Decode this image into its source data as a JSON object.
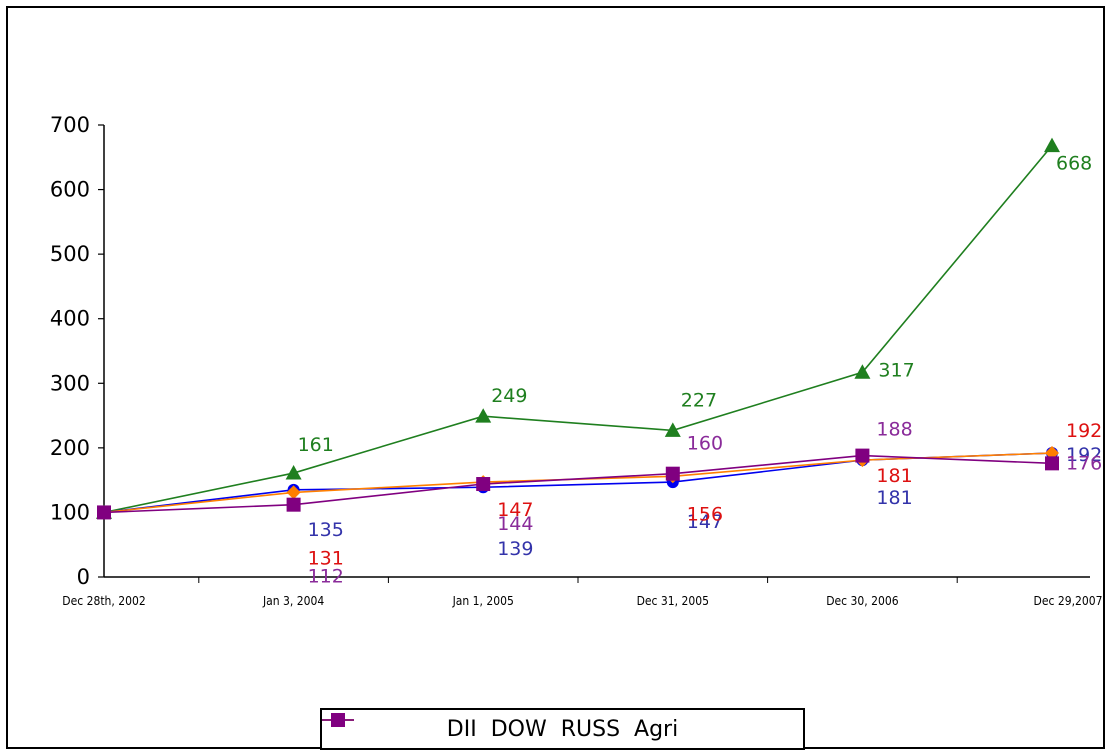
{
  "chart_data": {
    "type": "line",
    "categories": [
      "Dec 28th, 2002",
      "Jan 3, 2004",
      "Jan 1, 2005",
      "Dec 31, 2005",
      "Dec 30, 2006",
      "Dec 29,2007"
    ],
    "ylim": [
      0,
      700
    ],
    "yticks": [
      "0",
      "100",
      "200",
      "300",
      "400",
      "500",
      "600",
      "700"
    ],
    "grid": false,
    "legend_position": "bottom",
    "series": [
      {
        "name": "DII",
        "color": "#1f7f1f",
        "marker": "triangle",
        "values": [
          100,
          161,
          249,
          227,
          317,
          668
        ],
        "labels": [
          "",
          "161",
          "249",
          "227",
          "317",
          "668"
        ]
      },
      {
        "name": "DOW",
        "color": "#0000ee",
        "label_color": "#3333aa",
        "marker": "circle",
        "values": [
          100,
          135,
          139,
          147,
          181,
          192
        ],
        "labels": [
          "",
          "135",
          "139",
          "147",
          "181",
          "192"
        ]
      },
      {
        "name": "RUSS",
        "color": "#ff7f00",
        "label_color": "#dd1111",
        "marker": "diamond",
        "values": [
          100,
          131,
          147,
          156,
          181,
          192
        ],
        "labels": [
          "",
          "131",
          "147",
          "156",
          "181",
          "192"
        ]
      },
      {
        "name": "Agri",
        "color": "#800080",
        "label_color": "#8a2b9a",
        "marker": "square",
        "values": [
          100,
          112,
          144,
          160,
          188,
          176
        ],
        "labels": [
          "",
          "112",
          "144",
          "160",
          "188",
          "176"
        ]
      }
    ]
  }
}
